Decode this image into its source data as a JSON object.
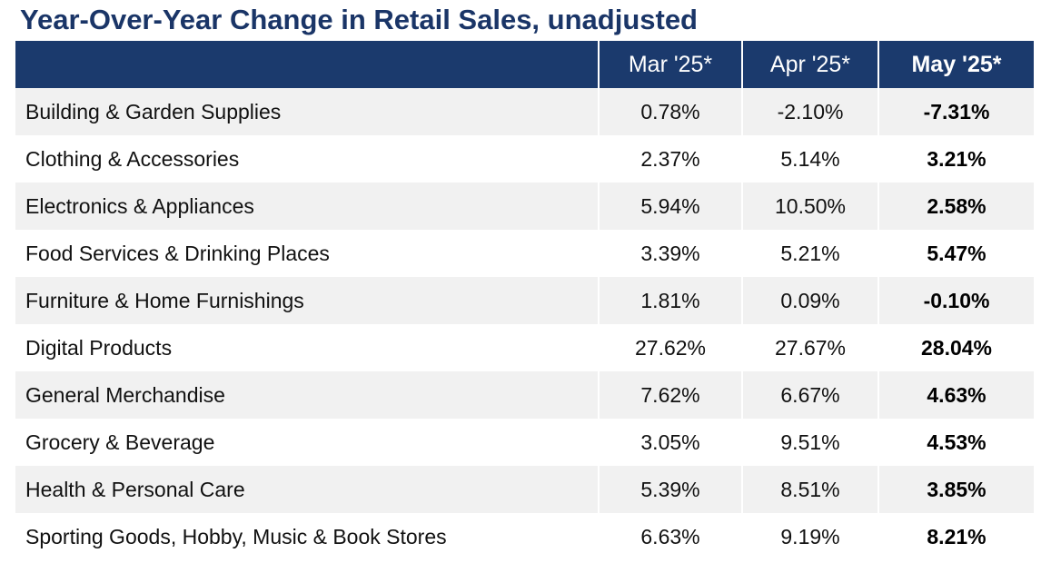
{
  "title": "Year-Over-Year Change in Retail Sales, unadjusted",
  "columns": {
    "category": "",
    "mar": "Mar '25*",
    "apr": "Apr '25*",
    "may": "May '25*"
  },
  "rows": [
    {
      "category": "Building & Garden Supplies",
      "mar": "0.78%",
      "apr": "-2.10%",
      "may": "-7.31%"
    },
    {
      "category": "Clothing & Accessories",
      "mar": "2.37%",
      "apr": "5.14%",
      "may": "3.21%"
    },
    {
      "category": "Electronics & Appliances",
      "mar": "5.94%",
      "apr": "10.50%",
      "may": "2.58%"
    },
    {
      "category": "Food Services & Drinking Places",
      "mar": "3.39%",
      "apr": "5.21%",
      "may": "5.47%"
    },
    {
      "category": "Furniture & Home Furnishings",
      "mar": "1.81%",
      "apr": "0.09%",
      "may": "-0.10%"
    },
    {
      "category": "Digital Products",
      "mar": "27.62%",
      "apr": "27.67%",
      "may": "28.04%"
    },
    {
      "category": "General Merchandise",
      "mar": "7.62%",
      "apr": "6.67%",
      "may": "4.63%"
    },
    {
      "category": "Grocery & Beverage",
      "mar": "3.05%",
      "apr": "9.51%",
      "may": "4.53%"
    },
    {
      "category": "Health & Personal Care",
      "mar": "5.39%",
      "apr": "8.51%",
      "may": "3.85%"
    },
    {
      "category": "Sporting Goods, Hobby, Music & Book Stores",
      "mar": "6.63%",
      "apr": "9.19%",
      "may": "8.21%"
    }
  ],
  "colors": {
    "title": "#1a3567",
    "header_bg": "#1b3a6d",
    "header_text": "#ffffff",
    "row_shade": "#f1f1f1",
    "row_plain": "#ffffff"
  }
}
